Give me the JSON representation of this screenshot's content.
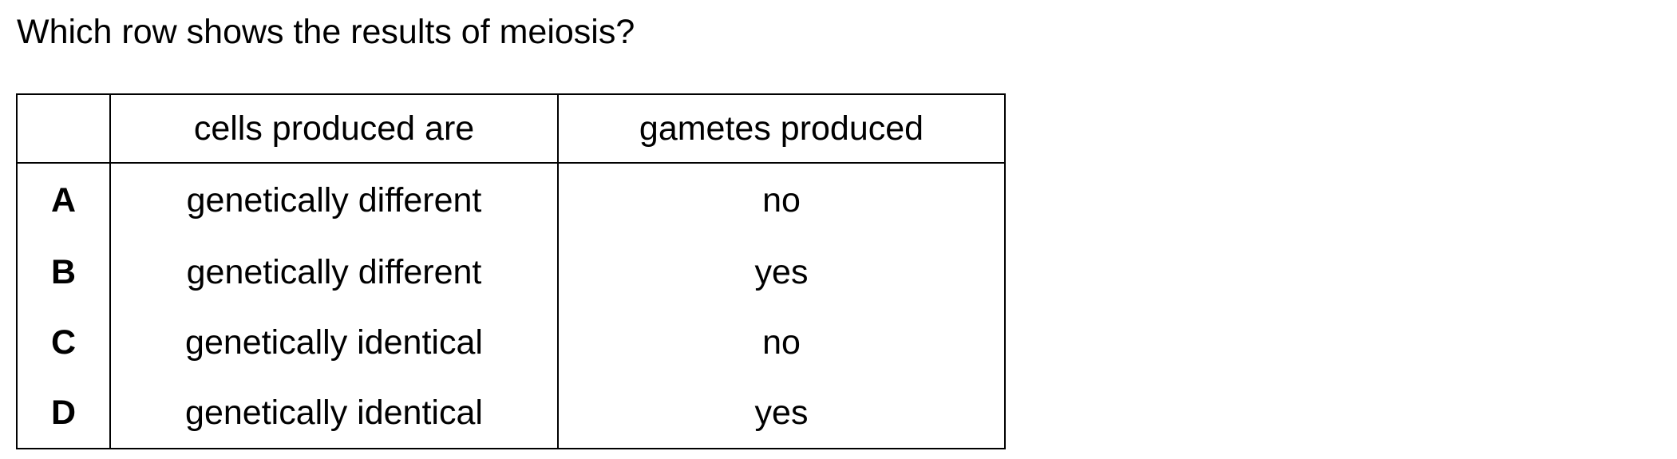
{
  "question": "Which row shows the results of meiosis?",
  "table": {
    "headers": [
      "",
      "cells produced are",
      "gametes produced"
    ],
    "rows": [
      {
        "option": "A",
        "cells": "genetically different",
        "gametes": "no"
      },
      {
        "option": "B",
        "cells": "genetically different",
        "gametes": "yes"
      },
      {
        "option": "C",
        "cells": "genetically identical",
        "gametes": "no"
      },
      {
        "option": "D",
        "cells": "genetically identical",
        "gametes": "yes"
      }
    ]
  }
}
